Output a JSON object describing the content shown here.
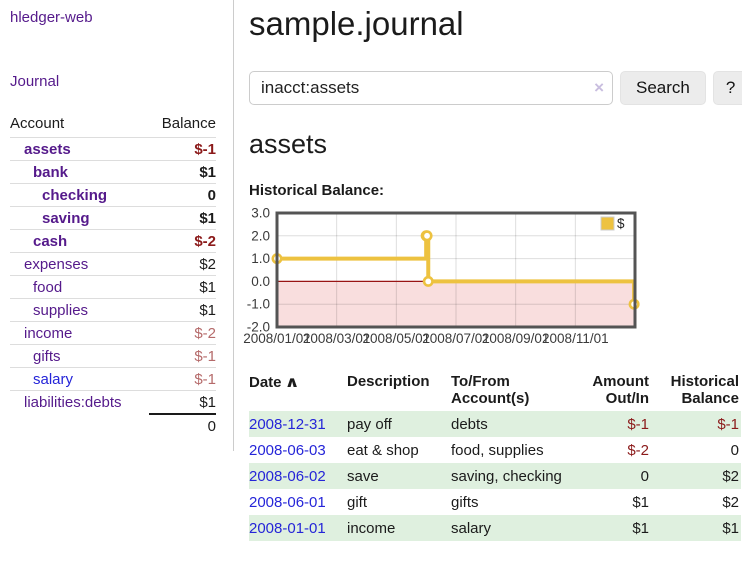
{
  "colors": {
    "accent_purple": "#551a8b",
    "link_blue": "#2525d8",
    "neg_strong": "#8b1a1a",
    "neg_soft": "#b56a6a",
    "stripe_green": "#dff0df",
    "series_gold": "#edc240",
    "region_pink": "#f9dede",
    "zero_line": "#991414",
    "divider_gray": "#cccccc",
    "plot_border": "#545454",
    "btn_bg": "#ececec"
  },
  "sidebar": {
    "brand": "hledger-web",
    "journal_link": "Journal",
    "header": {
      "account": "Account",
      "balance": "Balance"
    },
    "accounts": [
      {
        "name": "assets",
        "depth": 1,
        "balance": "$-1",
        "emph": true,
        "link_tone": "purple"
      },
      {
        "name": "bank",
        "depth": 2,
        "balance": "$1",
        "emph": true,
        "link_tone": "purple"
      },
      {
        "name": "checking",
        "depth": 3,
        "balance": "0",
        "emph": true,
        "link_tone": "purple"
      },
      {
        "name": "saving",
        "depth": 3,
        "balance": "$1",
        "emph": true,
        "link_tone": "purple"
      },
      {
        "name": "cash",
        "depth": 2,
        "balance": "$-2",
        "emph": true,
        "link_tone": "purple"
      },
      {
        "name": "expenses",
        "depth": 1,
        "balance": "$2",
        "emph": false,
        "link_tone": "purple"
      },
      {
        "name": "food",
        "depth": 2,
        "balance": "$1",
        "emph": false,
        "link_tone": "purple"
      },
      {
        "name": "supplies",
        "depth": 2,
        "balance": "$1",
        "emph": false,
        "link_tone": "purple"
      },
      {
        "name": "income",
        "depth": 1,
        "balance": "$-2",
        "emph": false,
        "link_tone": "purple"
      },
      {
        "name": "gifts",
        "depth": 2,
        "balance": "$-1",
        "emph": false,
        "link_tone": "purple"
      },
      {
        "name": "salary",
        "depth": 2,
        "balance": "$-1",
        "emph": false,
        "link_tone": "blue"
      },
      {
        "name": "liabilities:debts",
        "depth": 1,
        "balance": "$1",
        "emph": false,
        "link_tone": "purple"
      }
    ],
    "total": "0"
  },
  "header": {
    "title": "sample.journal"
  },
  "search": {
    "value": "inacct:assets",
    "clear_icon": "×",
    "button_label": "Search",
    "help_label": "?"
  },
  "account_page": {
    "title": "assets",
    "chart_label": "Historical Balance:"
  },
  "chart_data": {
    "type": "line",
    "title": "Historical Balance",
    "legend": "$",
    "series": [
      {
        "name": "$",
        "color": "#edc240",
        "step": true,
        "points": [
          {
            "date": "2008-01-01",
            "t": 0.0,
            "value": 1
          },
          {
            "date": "2008-06-01",
            "t": 5.0,
            "value": 2
          },
          {
            "date": "2008-06-02",
            "t": 5.03,
            "value": 2
          },
          {
            "date": "2008-06-03",
            "t": 5.07,
            "value": 0
          },
          {
            "date": "2008-12-31",
            "t": 11.97,
            "value": -1
          }
        ]
      }
    ],
    "x_ticks": [
      {
        "t": 0,
        "label": "2008/01/01"
      },
      {
        "t": 2,
        "label": "2008/03/01"
      },
      {
        "t": 4,
        "label": "2008/05/01"
      },
      {
        "t": 6,
        "label": "2008/07/01"
      },
      {
        "t": 8,
        "label": "2008/09/01"
      },
      {
        "t": 10,
        "label": "2008/11/01"
      }
    ],
    "y_ticks": [
      3.0,
      2.0,
      1.0,
      0.0,
      -1.0,
      -2.0
    ],
    "xlim": [
      0,
      12
    ],
    "ylim": [
      -2,
      3
    ],
    "grid": true,
    "negative_region_shaded": true,
    "legend_position": "top-right"
  },
  "transactions": {
    "headers": {
      "date": "Date",
      "sort_icon": "∧",
      "description": "Description",
      "accounts": "To/From Account(s)",
      "amount": "Amount Out/In",
      "balance": "Historical Balance"
    },
    "rows": [
      {
        "date": "2008-12-31",
        "description": "pay off",
        "accounts": "debts",
        "amount": "$-1",
        "balance": "$-1"
      },
      {
        "date": "2008-06-03",
        "description": "eat & shop",
        "accounts": "food, supplies",
        "amount": "$-2",
        "balance": "0"
      },
      {
        "date": "2008-06-02",
        "description": "save",
        "accounts": "saving, checking",
        "amount": "0",
        "balance": "$2"
      },
      {
        "date": "2008-06-01",
        "description": "gift",
        "accounts": "gifts",
        "amount": "$1",
        "balance": "$2"
      },
      {
        "date": "2008-01-01",
        "description": "income",
        "accounts": "salary",
        "amount": "$1",
        "balance": "$1"
      }
    ]
  }
}
